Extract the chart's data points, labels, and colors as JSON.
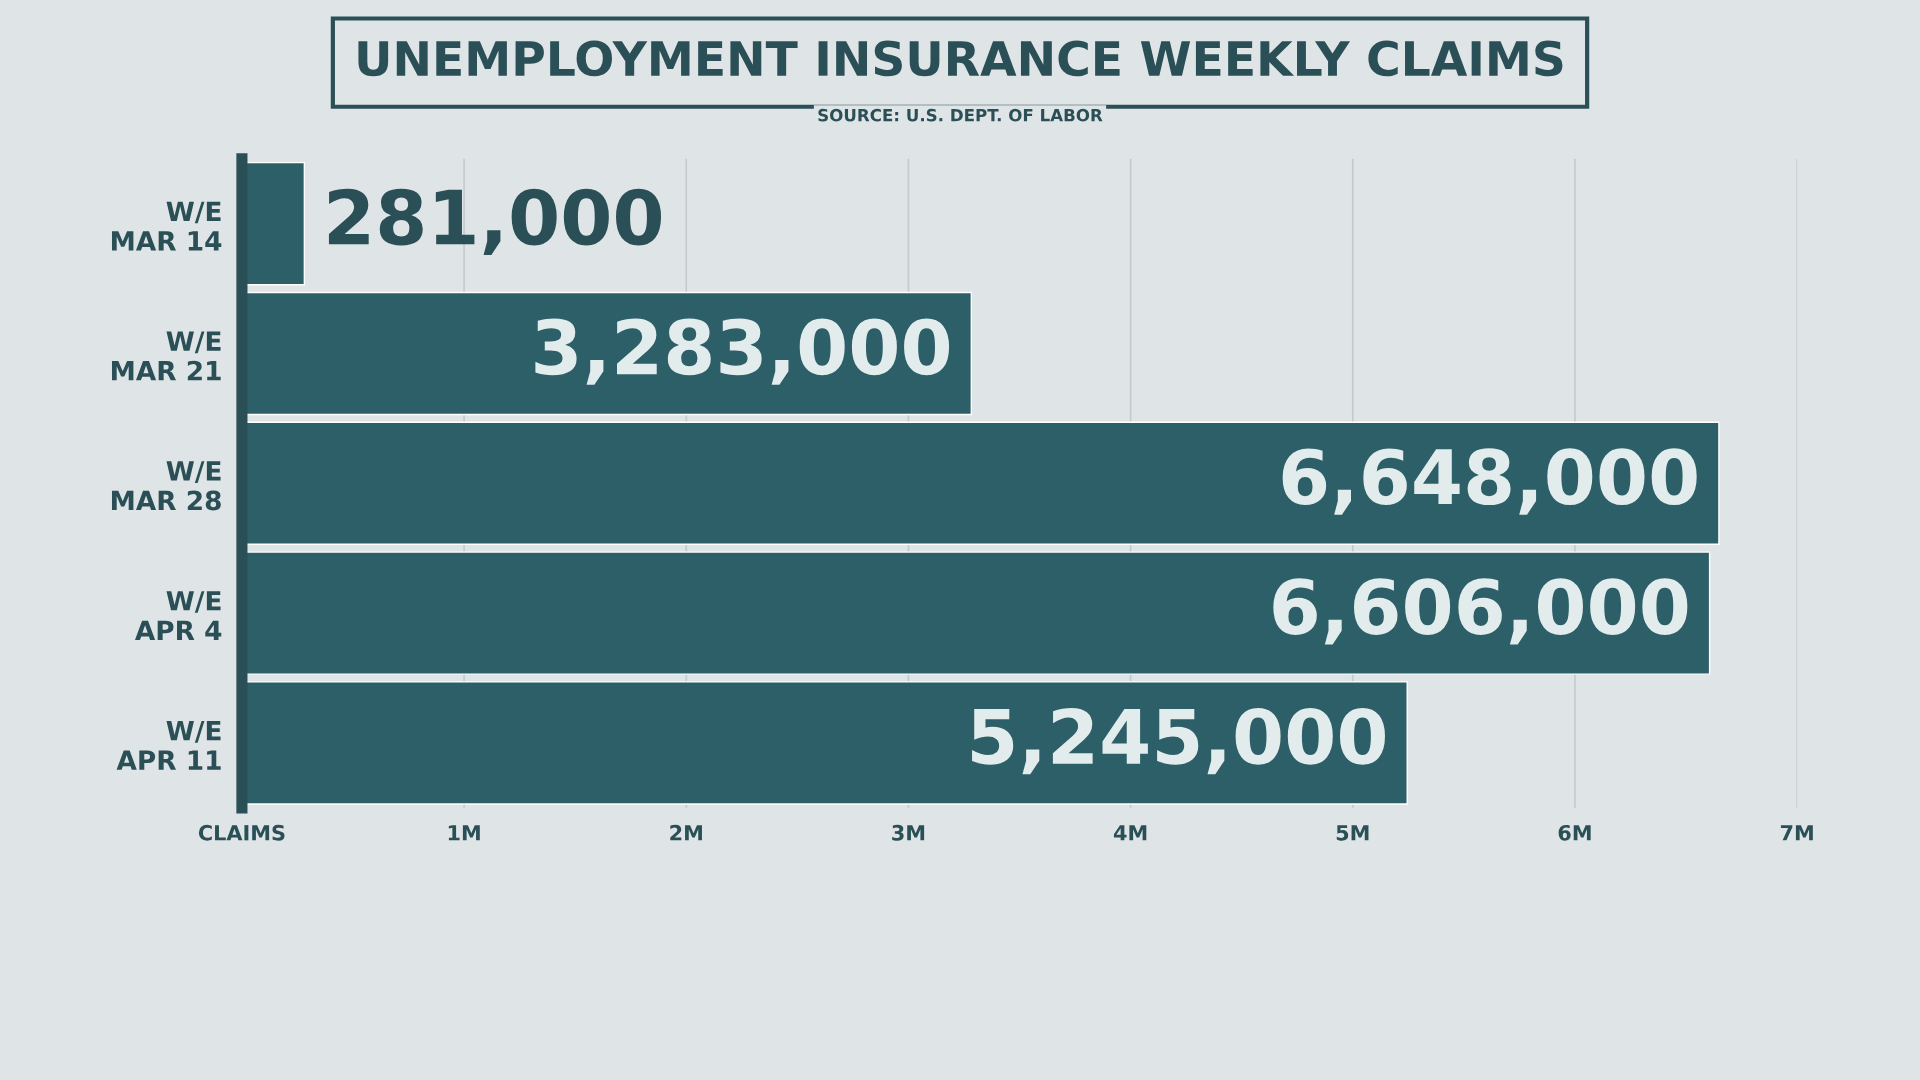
{
  "chart_data": {
    "type": "bar",
    "orientation": "horizontal",
    "title": "UNEMPLOYMENT INSURANCE WEEKLY CLAIMS",
    "annotations": [
      "SOURCE: U.S. DEPT. OF LABOR"
    ],
    "categories": [
      "W/E\nMAR 14",
      "W/E\nMAR 21",
      "W/E\nMAR 28",
      "W/E\nAPR 4",
      "W/E\nAPR 11"
    ],
    "values": [
      281000,
      3283000,
      6648000,
      6606000,
      5245000
    ],
    "value_labels": [
      "281,000",
      "3,283,000",
      "6,648,000",
      "6,606,000",
      "5,245,000"
    ],
    "color": "#2d5f68",
    "xlim": [
      0,
      7000000
    ],
    "xticks": [
      {
        "value": 0,
        "label": "CLAIMS"
      },
      {
        "value": 1000000,
        "label": "1M"
      },
      {
        "value": 2000000,
        "label": "2M"
      },
      {
        "value": 3000000,
        "label": "3M"
      },
      {
        "value": 4000000,
        "label": "4M"
      },
      {
        "value": 5000000,
        "label": "5M"
      },
      {
        "value": 6000000,
        "label": "6M"
      },
      {
        "value": 7000000,
        "label": "7M"
      }
    ],
    "grid": "x",
    "legend": false
  }
}
